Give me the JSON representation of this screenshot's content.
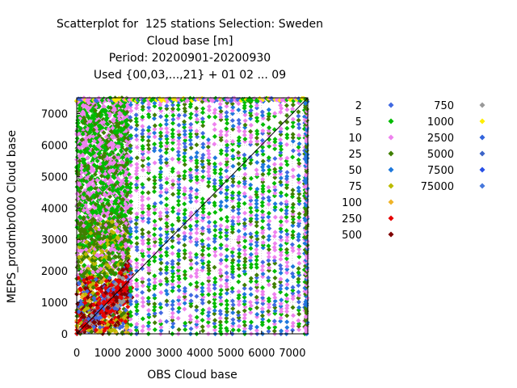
{
  "chart_data": {
    "type": "scatter",
    "title_lines": [
      "Scatterplot for  125 stations Selection: Sweden",
      "Cloud base [m]",
      "Period: 20200901-20200930",
      "Used {00,03,...,21} + 01 02 ... 09"
    ],
    "xlabel": "OBS Cloud base",
    "ylabel": "MEPS_prodmbr000 Cloud base",
    "xlim": [
      0,
      7500
    ],
    "ylim": [
      0,
      7500
    ],
    "xticks": [
      "0",
      "1000",
      "2000",
      "3000",
      "4000",
      "5000",
      "6000",
      "7000"
    ],
    "yticks": [
      "0",
      "1000",
      "2000",
      "3000",
      "4000",
      "5000",
      "6000",
      "7000"
    ],
    "xtick_values": [
      0,
      1000,
      2000,
      3000,
      4000,
      5000,
      6000,
      7000
    ],
    "ytick_values": [
      0,
      1000,
      2000,
      3000,
      4000,
      5000,
      6000,
      7000
    ],
    "grid": true,
    "diagonal": true,
    "legend_position": "right",
    "legend": [
      {
        "label": "2",
        "color": "#4169e1"
      },
      {
        "label": "5",
        "color": "#00bb00"
      },
      {
        "label": "10",
        "color": "#ee82ee"
      },
      {
        "label": "25",
        "color": "#3f7f00"
      },
      {
        "label": "50",
        "color": "#1e78dc"
      },
      {
        "label": "75",
        "color": "#bbbb00"
      },
      {
        "label": "100",
        "color": "#f0b428"
      },
      {
        "label": "250",
        "color": "#e60000"
      },
      {
        "label": "500",
        "color": "#7f0000"
      },
      {
        "label": "750",
        "color": "#999999"
      },
      {
        "label": "1000",
        "color": "#ffee00"
      },
      {
        "label": "2500",
        "color": "#3264dc"
      },
      {
        "label": "5000",
        "color": "#3c64c8"
      },
      {
        "label": "7500",
        "color": "#2850e6"
      },
      {
        "label": "75000",
        "color": "#4678dc"
      }
    ]
  }
}
